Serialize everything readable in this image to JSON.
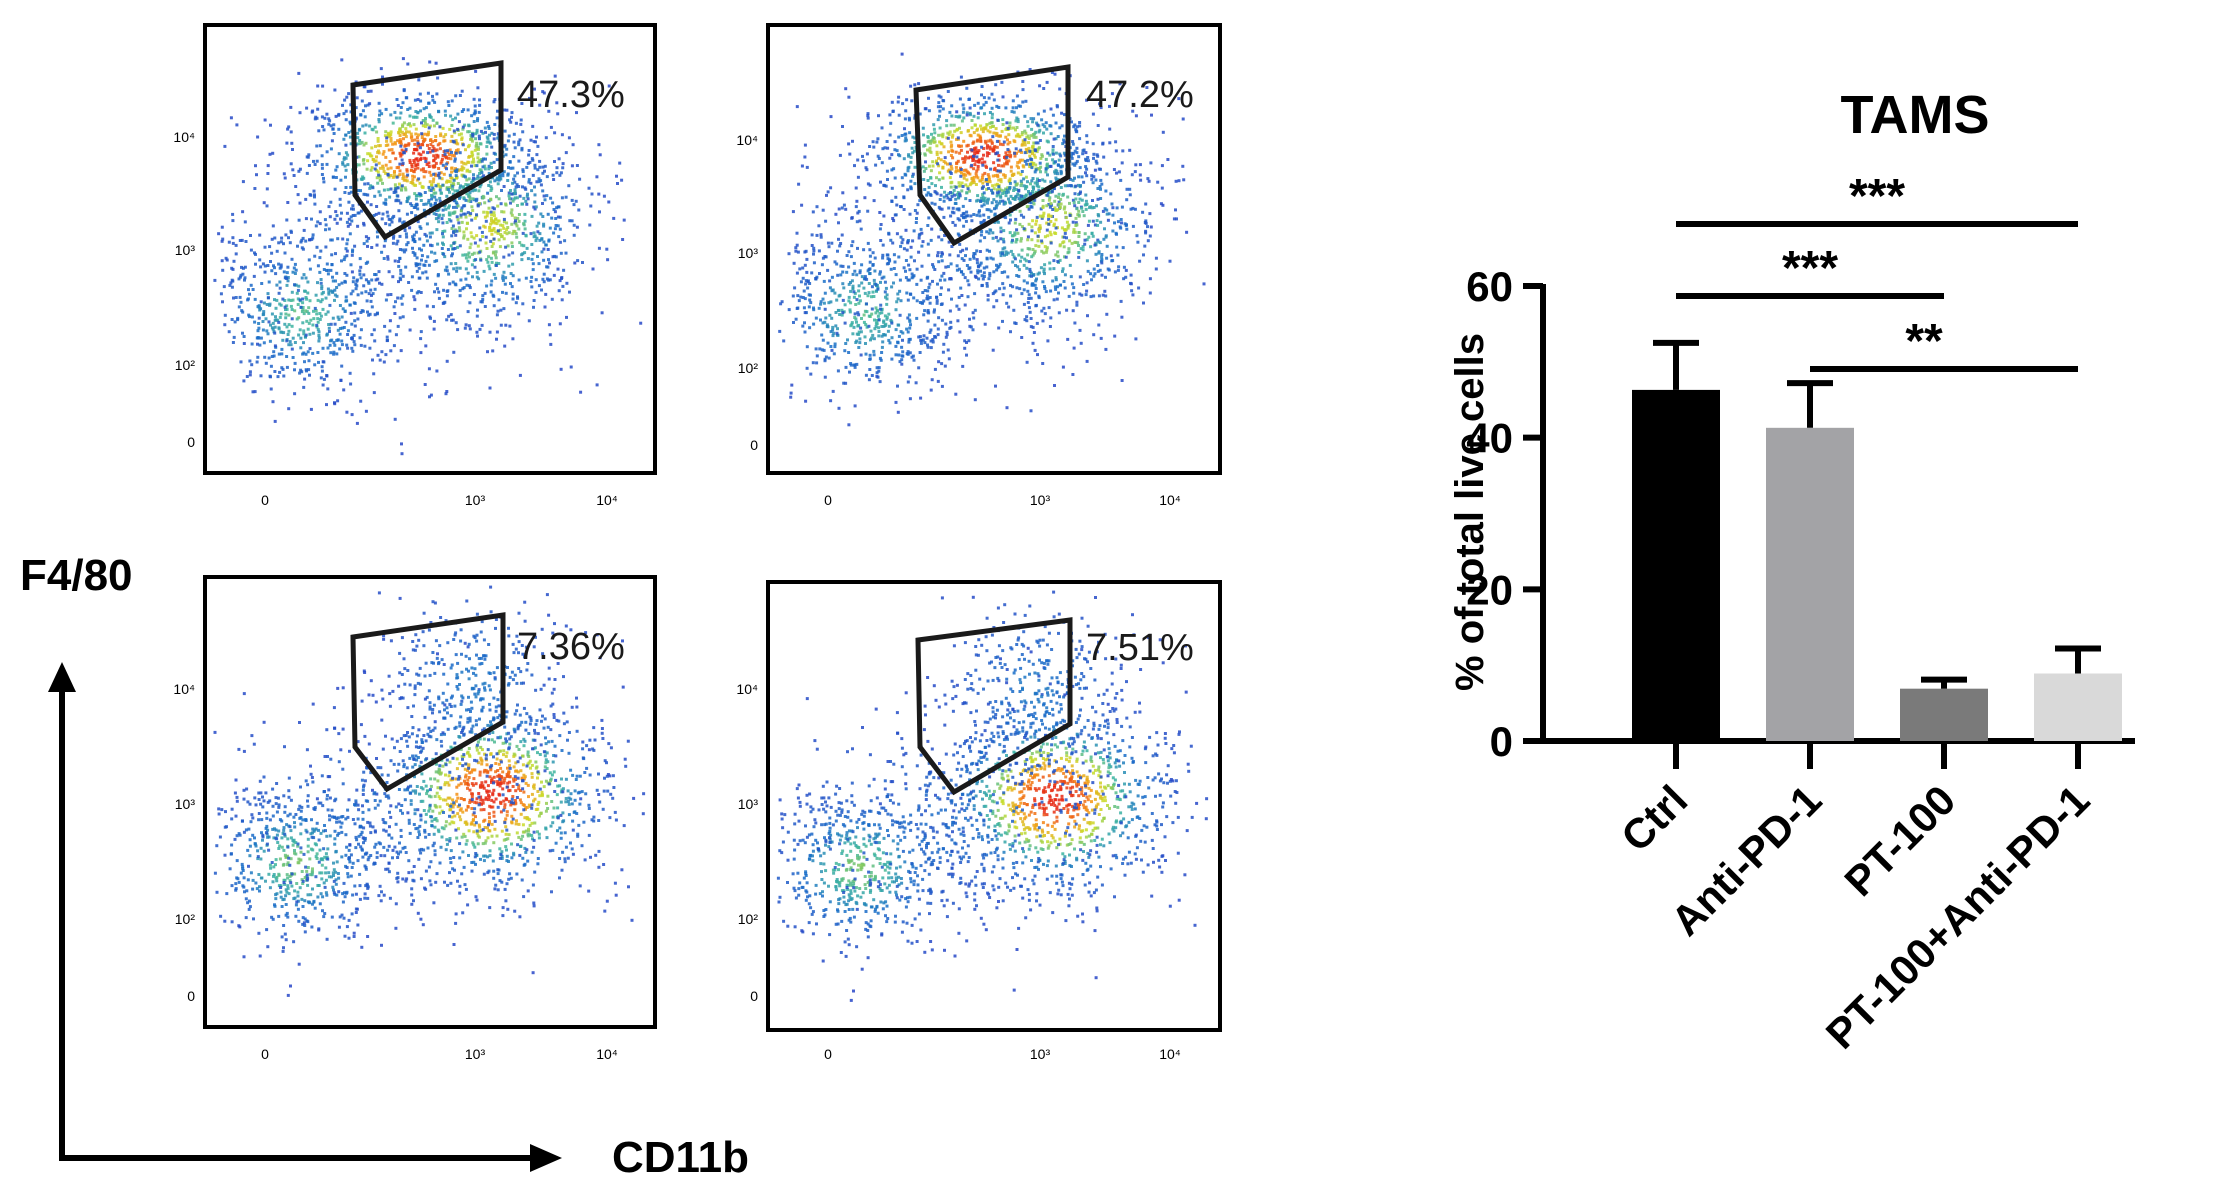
{
  "axes": {
    "y_label": "F4/80",
    "x_label": "CD11b"
  },
  "flow_panels": [
    {
      "id": "top-left",
      "gate_percent": "47.3%",
      "population": "high"
    },
    {
      "id": "top-right",
      "gate_percent": "47.2%",
      "population": "high"
    },
    {
      "id": "bottom-left",
      "gate_percent": "7.36%",
      "population": "low"
    },
    {
      "id": "bottom-right",
      "gate_percent": "7.51%",
      "population": "low"
    }
  ],
  "flow_ticks": {
    "y": [
      "10⁴",
      "10³",
      "10²",
      "0"
    ],
    "x": [
      "0",
      "10³",
      "10⁴"
    ]
  },
  "colors": {
    "ctrl": "#000000",
    "anti_pd1": "#a3a3a6",
    "pt100": "#7a7a7a",
    "combo": "#d9d9d9",
    "density_low": "#1c3fa8",
    "density_high": "#e63312"
  },
  "chart_data": {
    "type": "bar",
    "title": "TAMS",
    "ylabel": "% of total live cells",
    "xlabel": "",
    "categories": [
      "Ctrl",
      "Anti-PD-1",
      "PT-100",
      "PT-100+Anti-PD-1"
    ],
    "values": [
      46.3,
      41.3,
      6.9,
      8.9
    ],
    "errors": [
      6.2,
      5.9,
      1.2,
      3.3
    ],
    "ylim": [
      0,
      60
    ],
    "yticks": [
      "0",
      "20",
      "40",
      "60"
    ],
    "significance": [
      {
        "from": 0,
        "to": 3,
        "label": "***"
      },
      {
        "from": 0,
        "to": 2,
        "label": "***"
      },
      {
        "from": 1,
        "to": 3,
        "label": "**"
      }
    ]
  }
}
